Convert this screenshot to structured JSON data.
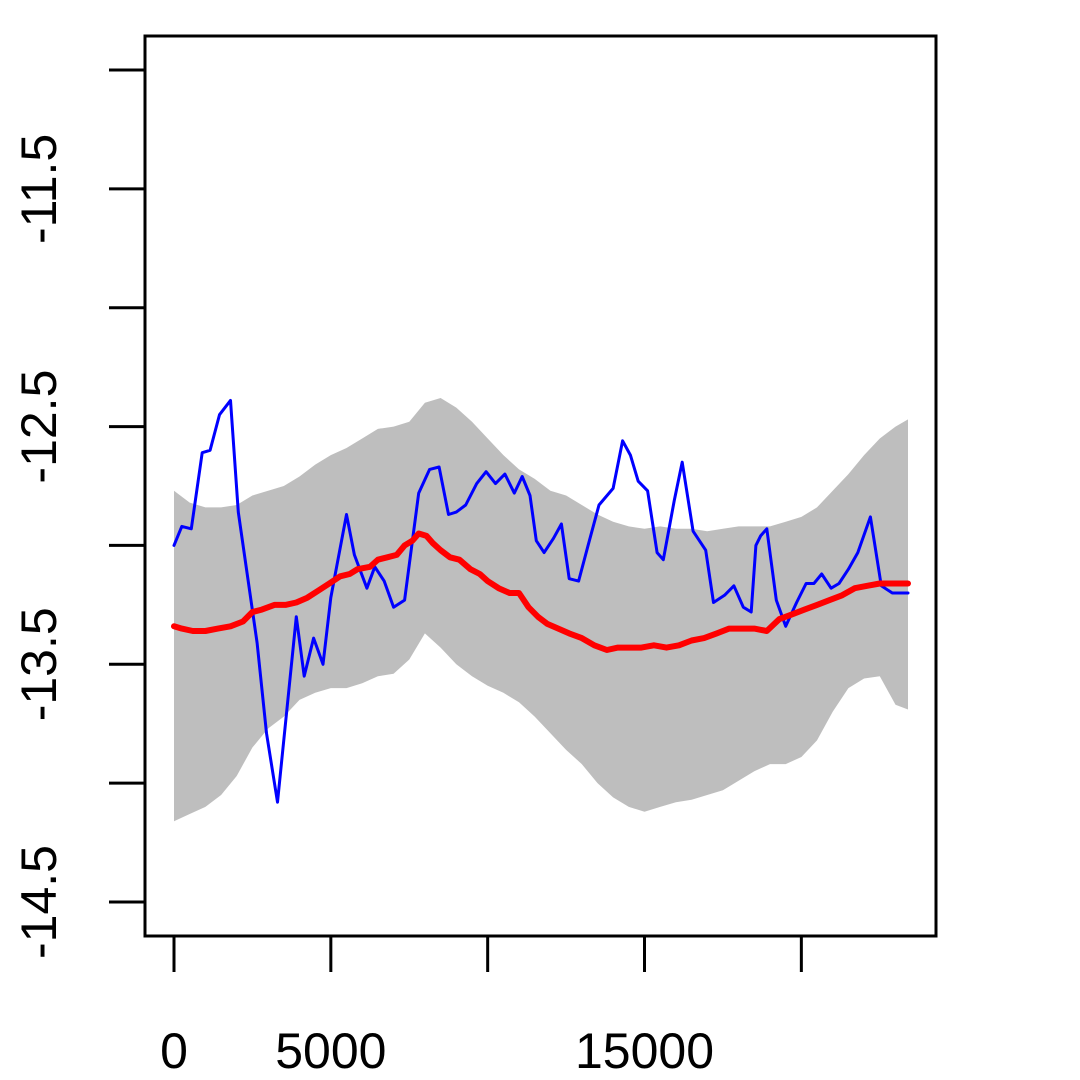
{
  "chart_data": {
    "type": "line",
    "title": "",
    "xlabel": "",
    "ylabel": "",
    "xlim": [
      -900,
      24600
    ],
    "ylim": [
      -14.78,
      -11.0
    ],
    "x_ticks": [
      0,
      5000,
      10000,
      15000,
      20000
    ],
    "x_tick_labels": [
      "0",
      "5000",
      "",
      "15000",
      ""
    ],
    "y_ticks": [
      -11.0,
      -11.5,
      -12.0,
      -12.5,
      -13.0,
      -13.5,
      -14.0,
      -14.5
    ],
    "y_tick_labels": [
      "",
      "-11.5",
      "",
      "-12.5",
      "",
      "-13.5",
      "",
      "-14.5"
    ],
    "grid": false,
    "legend": "none",
    "band": {
      "color": "#bebebe",
      "x": [
        0,
        500,
        1000,
        1500,
        2000,
        2500,
        3000,
        3500,
        4000,
        4500,
        5000,
        5500,
        6000,
        6500,
        7000,
        7500,
        8000,
        8500,
        9000,
        9500,
        10000,
        10500,
        11000,
        11500,
        12000,
        12500,
        13000,
        13500,
        14000,
        14500,
        15000,
        15500,
        16000,
        16500,
        17000,
        17500,
        18000,
        18500,
        19000,
        19500,
        20000,
        20500,
        21000,
        21500,
        22000,
        22500,
        23000,
        23400
      ],
      "upper": [
        -12.77,
        -12.82,
        -12.84,
        -12.84,
        -12.83,
        -12.79,
        -12.77,
        -12.75,
        -12.71,
        -12.66,
        -12.62,
        -12.59,
        -12.55,
        -12.51,
        -12.5,
        -12.48,
        -12.4,
        -12.38,
        -12.42,
        -12.48,
        -12.55,
        -12.62,
        -12.68,
        -12.72,
        -12.77,
        -12.79,
        -12.83,
        -12.87,
        -12.9,
        -12.92,
        -12.93,
        -12.92,
        -12.93,
        -12.93,
        -12.94,
        -12.93,
        -12.92,
        -12.92,
        -12.92,
        -12.9,
        -12.88,
        -12.84,
        -12.77,
        -12.7,
        -12.62,
        -12.55,
        -12.5,
        -12.47
      ],
      "lower": [
        -14.16,
        -14.13,
        -14.1,
        -14.05,
        -13.97,
        -13.85,
        -13.77,
        -13.72,
        -13.65,
        -13.62,
        -13.6,
        -13.6,
        -13.58,
        -13.55,
        -13.54,
        -13.48,
        -13.37,
        -13.43,
        -13.5,
        -13.55,
        -13.59,
        -13.62,
        -13.66,
        -13.72,
        -13.79,
        -13.86,
        -13.92,
        -14.0,
        -14.06,
        -14.1,
        -14.12,
        -14.1,
        -14.08,
        -14.07,
        -14.05,
        -14.03,
        -13.99,
        -13.95,
        -13.92,
        -13.92,
        -13.89,
        -13.82,
        -13.7,
        -13.6,
        -13.56,
        -13.55,
        -13.67,
        -13.69
      ]
    },
    "series": [
      {
        "color": "#0000ff",
        "x": [
          0,
          250,
          550,
          900,
          1150,
          1450,
          1800,
          2050,
          2650,
          2950,
          3300,
          3900,
          4150,
          4450,
          4750,
          5000,
          5500,
          5750,
          6150,
          6400,
          6700,
          7000,
          7350,
          7800,
          8150,
          8450,
          8750,
          9000,
          9300,
          9650,
          9950,
          10250,
          10550,
          10850,
          11100,
          11350,
          11550,
          11800,
          12100,
          12350,
          12600,
          12900,
          13200,
          13550,
          14000,
          14300,
          14550,
          14800,
          15100,
          15400,
          15600,
          15950,
          16200,
          16550,
          16950,
          17200,
          17550,
          17850,
          18150,
          18400,
          18550,
          18700,
          18900,
          19200,
          19500,
          19850,
          20150,
          20400,
          20650,
          20950,
          21200,
          21500,
          21800,
          22200,
          22550,
          22900,
          23150,
          23400
        ],
        "y": [
          -13.0,
          -12.92,
          -12.93,
          -12.61,
          -12.6,
          -12.45,
          -12.39,
          -12.86,
          -13.41,
          -13.79,
          -14.08,
          -13.3,
          -13.55,
          -13.39,
          -13.5,
          -13.22,
          -12.87,
          -13.04,
          -13.18,
          -13.09,
          -13.15,
          -13.26,
          -13.23,
          -12.78,
          -12.68,
          -12.67,
          -12.87,
          -12.86,
          -12.83,
          -12.74,
          -12.69,
          -12.74,
          -12.7,
          -12.78,
          -12.71,
          -12.79,
          -12.98,
          -13.03,
          -12.97,
          -12.91,
          -13.14,
          -13.15,
          -13.0,
          -12.83,
          -12.76,
          -12.56,
          -12.62,
          -12.73,
          -12.77,
          -13.03,
          -13.06,
          -12.81,
          -12.65,
          -12.94,
          -13.02,
          -13.24,
          -13.21,
          -13.17,
          -13.26,
          -13.28,
          -13.0,
          -12.96,
          -12.93,
          -13.23,
          -13.34,
          -13.24,
          -13.16,
          -13.16,
          -13.12,
          -13.18,
          -13.16,
          -13.1,
          -13.03,
          -12.88,
          -13.17,
          -13.2,
          -13.2,
          -13.2
        ]
      },
      {
        "color": "#ff0000",
        "x": [
          0,
          250,
          600,
          1000,
          1400,
          1800,
          2200,
          2500,
          2800,
          3200,
          3550,
          3900,
          4250,
          4600,
          4950,
          5300,
          5600,
          5850,
          6250,
          6500,
          6800,
          7100,
          7350,
          7600,
          7800,
          8050,
          8250,
          8500,
          8800,
          9100,
          9450,
          9750,
          10000,
          10350,
          10700,
          11000,
          11300,
          11600,
          11900,
          12250,
          12600,
          13000,
          13400,
          13800,
          14150,
          14500,
          14900,
          15300,
          15700,
          16100,
          16500,
          16900,
          17300,
          17700,
          18100,
          18500,
          18900,
          19300,
          19700,
          20100,
          20500,
          20900,
          21300,
          21700,
          22100,
          22500,
          22900,
          23400
        ],
        "y": [
          -13.34,
          -13.35,
          -13.36,
          -13.36,
          -13.35,
          -13.34,
          -13.32,
          -13.28,
          -13.27,
          -13.25,
          -13.25,
          -13.24,
          -13.22,
          -13.19,
          -13.16,
          -13.13,
          -13.12,
          -13.1,
          -13.09,
          -13.06,
          -13.05,
          -13.04,
          -13.0,
          -12.98,
          -12.95,
          -12.96,
          -12.99,
          -13.02,
          -13.05,
          -13.06,
          -13.1,
          -13.12,
          -13.15,
          -13.18,
          -13.2,
          -13.2,
          -13.26,
          -13.3,
          -13.33,
          -13.35,
          -13.37,
          -13.39,
          -13.42,
          -13.44,
          -13.43,
          -13.43,
          -13.43,
          -13.42,
          -13.43,
          -13.42,
          -13.4,
          -13.39,
          -13.37,
          -13.35,
          -13.35,
          -13.35,
          -13.36,
          -13.31,
          -13.29,
          -13.27,
          -13.25,
          -13.23,
          -13.21,
          -13.18,
          -13.17,
          -13.16,
          -13.16,
          -13.16
        ]
      }
    ]
  }
}
